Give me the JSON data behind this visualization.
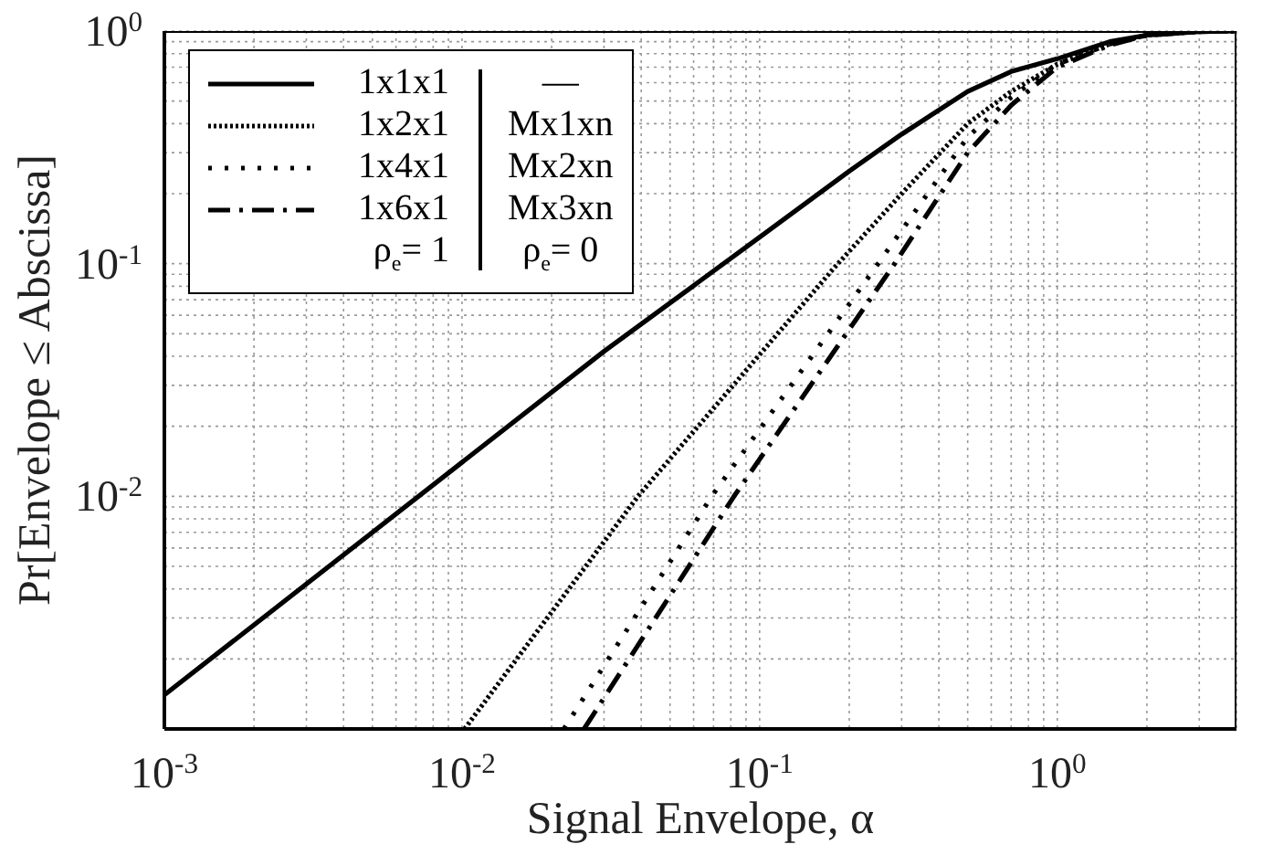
{
  "chart_data": {
    "type": "line",
    "xlabel": "Signal Envelope, α",
    "ylabel": "Pr[Envelope ≤ Abscissa]",
    "log": "xy",
    "grid": true,
    "legend": "top left",
    "marker": "none",
    "xlim": [
      0.001,
      4
    ],
    "ylim": [
      0.001,
      1
    ],
    "xticks": [
      {
        "value": 0.001,
        "label": "10$^{-3}$"
      },
      {
        "value": 0.002,
        "label": null
      },
      {
        "value": 0.003,
        "label": null
      },
      {
        "value": 0.004,
        "label": null
      },
      {
        "value": 0.005,
        "label": null
      },
      {
        "value": 0.006,
        "label": null
      },
      {
        "value": 0.007,
        "label": null
      },
      {
        "value": 0.008,
        "label": null
      },
      {
        "value": 0.009,
        "label": null
      },
      {
        "value": 0.01,
        "label": "10$^{-2}$"
      },
      {
        "value": 0.02,
        "label": null
      },
      {
        "value": 0.03,
        "label": null
      },
      {
        "value": 0.04,
        "label": null
      },
      {
        "value": 0.05,
        "label": null
      },
      {
        "value": 0.06,
        "label": null
      },
      {
        "value": 0.07,
        "label": null
      },
      {
        "value": 0.08,
        "label": null
      },
      {
        "value": 0.09,
        "label": null
      },
      {
        "value": 0.1,
        "label": "10$^{-1}$"
      },
      {
        "value": 0.2,
        "label": null
      },
      {
        "value": 0.3,
        "label": null
      },
      {
        "value": 0.4,
        "label": null
      },
      {
        "value": 0.5,
        "label": null
      },
      {
        "value": 0.6,
        "label": null
      },
      {
        "value": 0.7,
        "label": null
      },
      {
        "value": 0.8,
        "label": null
      },
      {
        "value": 0.9,
        "label": null
      },
      {
        "value": 1,
        "label": "10$^{0}$"
      },
      {
        "value": 2,
        "label": null
      },
      {
        "value": 3,
        "label": null
      }
    ],
    "yticks": [
      {
        "value": 0.001,
        "label": null
      },
      {
        "value": 0.002,
        "label": null
      },
      {
        "value": 0.003,
        "label": null
      },
      {
        "value": 0.004,
        "label": null
      },
      {
        "value": 0.005,
        "label": null
      },
      {
        "value": 0.006,
        "label": null
      },
      {
        "value": 0.007,
        "label": null
      },
      {
        "value": 0.008,
        "label": null
      },
      {
        "value": 0.009,
        "label": null
      },
      {
        "value": 0.01,
        "label": "10$^{-2}$"
      },
      {
        "value": 0.02,
        "label": null
      },
      {
        "value": 0.03,
        "label": null
      },
      {
        "value": 0.04,
        "label": null
      },
      {
        "value": 0.05,
        "label": null
      },
      {
        "value": 0.06,
        "label": null
      },
      {
        "value": 0.07,
        "label": null
      },
      {
        "value": 0.08,
        "label": null
      },
      {
        "value": 0.09,
        "label": null
      },
      {
        "value": 0.1,
        "label": "10$^{-1}$"
      },
      {
        "value": 0.2,
        "label": null
      },
      {
        "value": 0.3,
        "label": null
      },
      {
        "value": 0.4,
        "label": null
      },
      {
        "value": 0.5,
        "label": null
      },
      {
        "value": 0.6,
        "label": null
      },
      {
        "value": 0.7,
        "label": null
      },
      {
        "value": 0.8,
        "label": null
      },
      {
        "value": 0.9,
        "label": null
      },
      {
        "value": 1,
        "label": "10$^{0}$"
      }
    ],
    "annotations": [
      "ρ$_{e}$= 1",
      "—",
      "Mx1xn",
      "Mx2xn",
      "Mx3xn",
      "ρ$_{e}$= 0"
    ],
    "series": [
      {
        "name": "1x1x1",
        "color": "#000000",
        "line_style": "solid",
        "x": [
          0.001,
          0.01,
          0.03,
          0.1,
          0.2,
          0.3,
          0.5,
          0.7,
          1,
          1.5,
          2,
          3,
          4
        ],
        "values": [
          0.0014,
          0.014,
          0.042,
          0.13,
          0.25,
          0.36,
          0.55,
          0.67,
          0.76,
          0.9,
          0.96,
          0.995,
          1
        ]
      },
      {
        "name": "1x2x1",
        "color": "#000000",
        "line_style": "densely dotted",
        "x": [
          0.0102,
          0.039,
          0.178,
          0.3,
          0.5,
          0.7,
          1,
          1.5,
          2,
          3,
          4
        ],
        "values": [
          0.001,
          0.01,
          0.096,
          0.2,
          0.4,
          0.55,
          0.72,
          0.88,
          0.96,
          0.995,
          1
        ]
      },
      {
        "name": "1x4x1",
        "color": "#000000",
        "line_style": "dotted",
        "x": [
          0.022,
          0.069,
          0.25,
          0.5,
          0.7,
          1,
          1.5,
          2,
          3,
          4
        ],
        "values": [
          0.001,
          0.01,
          0.1,
          0.35,
          0.52,
          0.72,
          0.88,
          0.96,
          0.995,
          1
        ]
      },
      {
        "name": "1x6x1",
        "color": "#000000",
        "line_style": "dashdot",
        "x": [
          0.0257,
          0.082,
          0.284,
          0.5,
          0.7,
          1,
          1.5,
          2,
          3,
          4
        ],
        "values": [
          0.001,
          0.01,
          0.1,
          0.3,
          0.48,
          0.7,
          0.87,
          0.96,
          0.995,
          1
        ]
      }
    ]
  }
}
